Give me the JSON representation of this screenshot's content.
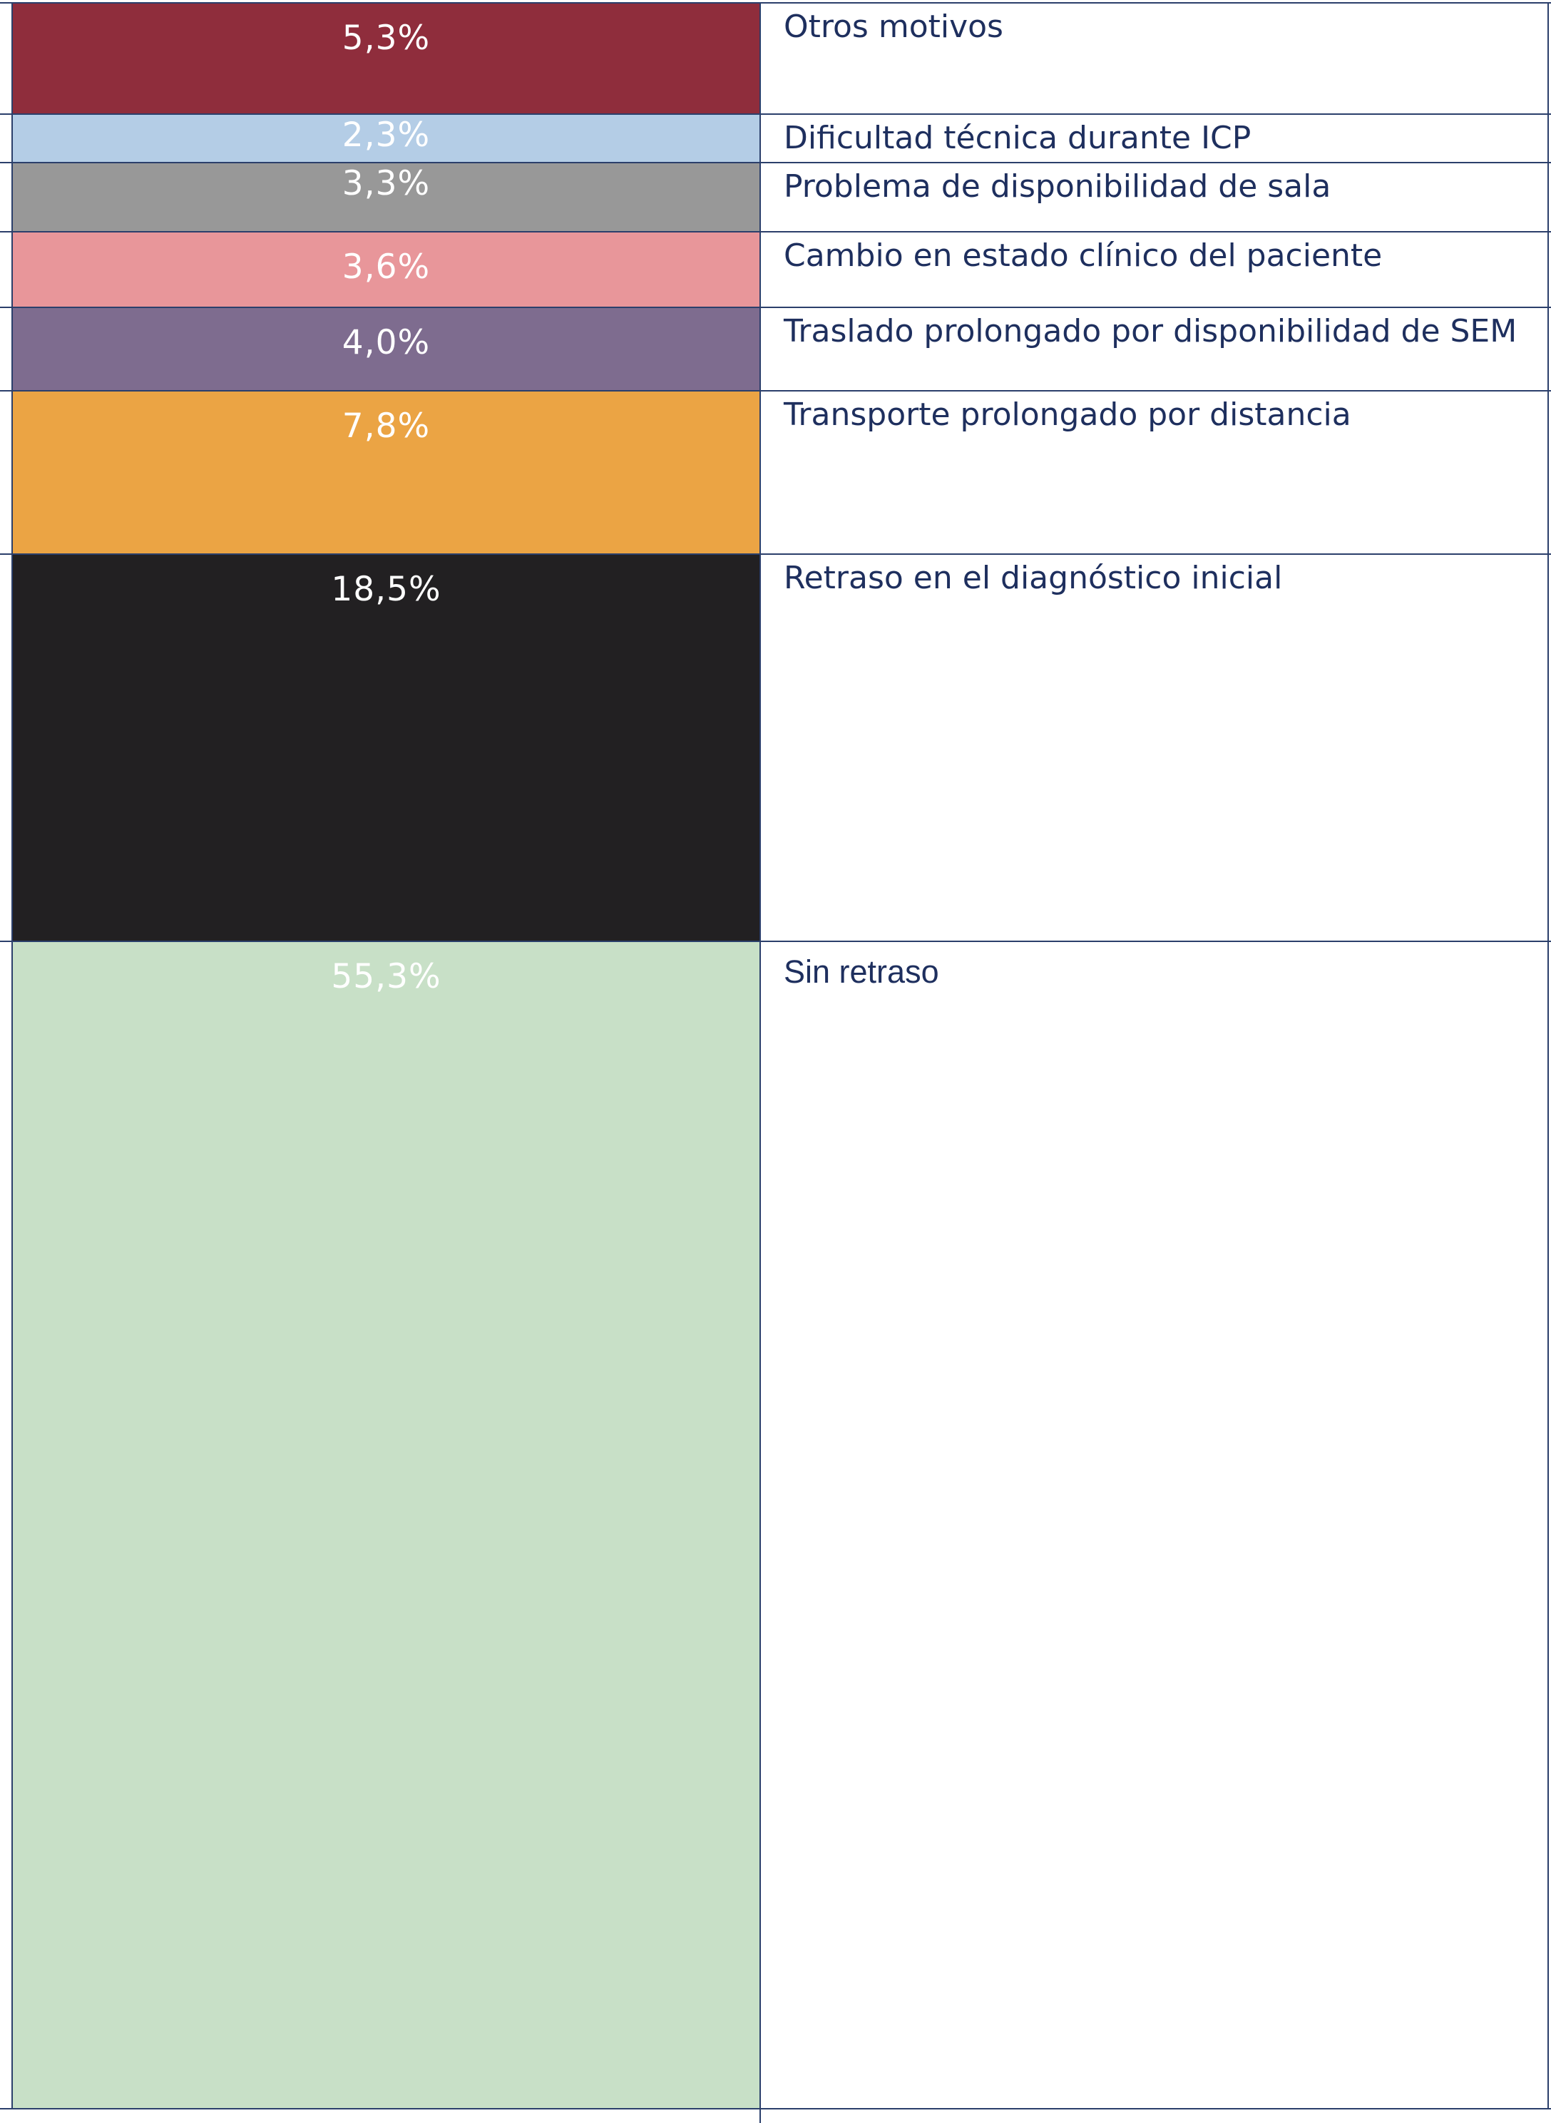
{
  "chart_data": {
    "type": "bar",
    "stacked": true,
    "orientation": "vertical",
    "unit": "%",
    "categories": [
      "Otros motivos",
      "Dificultad técnica durante ICP",
      "Problema de disponibilidad de sala",
      "Cambio en estado clínico del paciente",
      "Traslado prolongado por disponibilidad de SEM",
      "Transporte prolongado por distancia",
      "Retraso en el diagnóstico inicial",
      "Sin retraso"
    ],
    "values": [
      5.3,
      2.3,
      3.3,
      3.6,
      4.0,
      7.8,
      18.5,
      55.3
    ],
    "value_labels": [
      "5,3%",
      "2,3%",
      "3,3%",
      "3,6%",
      "4,0%",
      "7,8%",
      "18,5%",
      "55,3%"
    ],
    "colors": [
      "#8f2d3c",
      "#b4cde6",
      "#989898",
      "#e8969a",
      "#7e6c8f",
      "#eba444",
      "#222022",
      "#c8e0c7"
    ],
    "title": "",
    "xlabel": "",
    "ylabel": "",
    "legend": "right, one label per segment",
    "grid": false
  }
}
